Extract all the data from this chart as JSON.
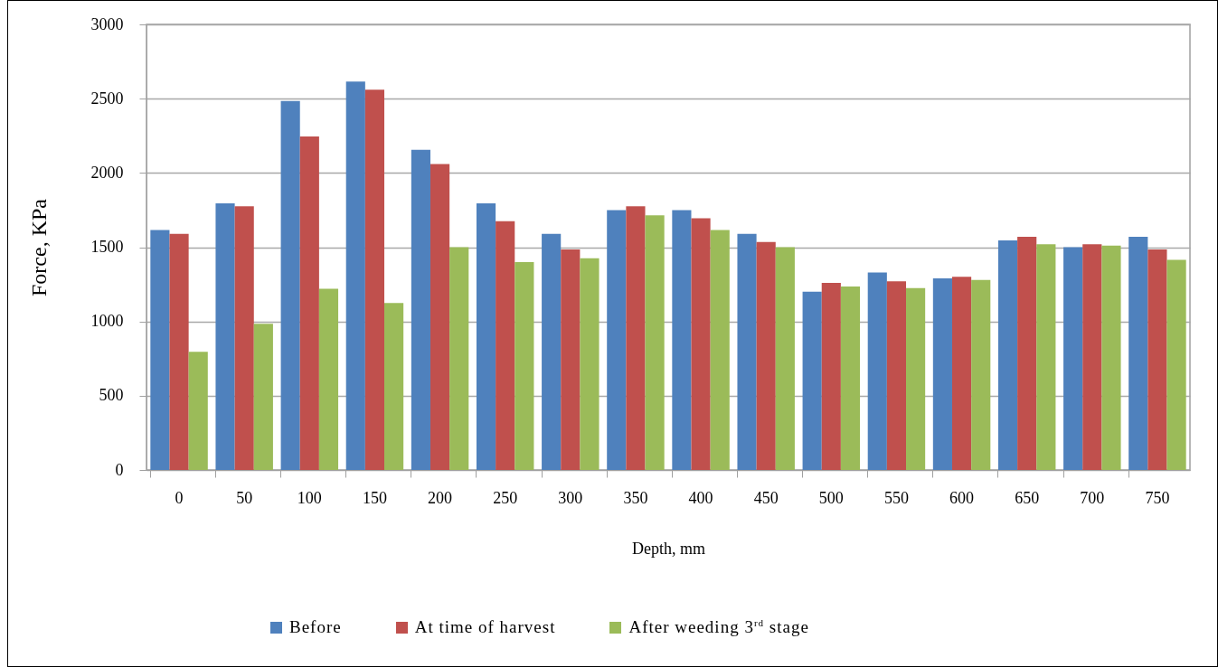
{
  "chart_data": {
    "type": "bar",
    "xlabel": "Depth, mm",
    "ylabel": "Force, KPa",
    "categories": [
      "0",
      "50",
      "100",
      "150",
      "200",
      "250",
      "300",
      "350",
      "400",
      "450",
      "500",
      "550",
      "600",
      "650",
      "700",
      "750"
    ],
    "series": [
      {
        "name": "Before",
        "color": "#4f81bd",
        "values": [
          1615,
          1795,
          2485,
          2615,
          2155,
          1795,
          1590,
          1750,
          1750,
          1590,
          1200,
          1330,
          1290,
          1545,
          1500,
          1570
        ]
      },
      {
        "name": "At time of harvest",
        "color": "#c0504d",
        "values": [
          1590,
          1775,
          2245,
          2560,
          2060,
          1675,
          1485,
          1775,
          1695,
          1535,
          1260,
          1270,
          1300,
          1570,
          1520,
          1485
        ]
      },
      {
        "name": "After weeding 3$^{rd}$ stage",
        "color": "#9bbb59",
        "values": [
          795,
          985,
          1220,
          1125,
          1500,
          1400,
          1425,
          1715,
          1615,
          1500,
          1235,
          1225,
          1280,
          1520,
          1510,
          1415
        ]
      }
    ],
    "ylim": [
      0,
      3000
    ],
    "yticks": [
      0,
      500,
      1000,
      1500,
      2000,
      2500,
      3000
    ],
    "grid": "y",
    "legend": "bottom"
  }
}
